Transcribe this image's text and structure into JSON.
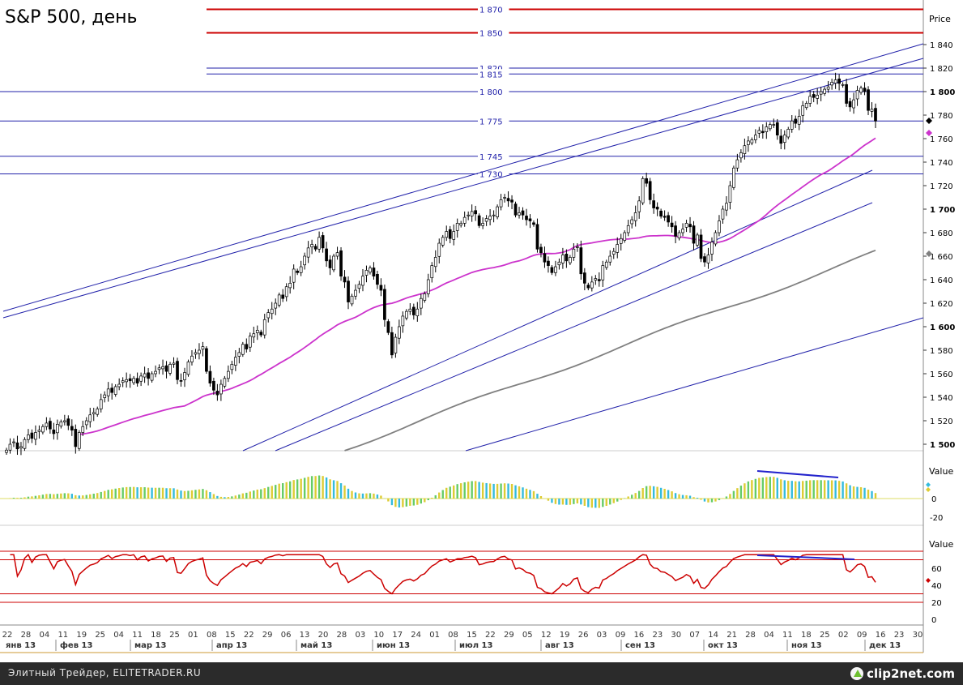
{
  "title": "S&P 500, день",
  "footer": {
    "left": "Элитный Трейдер, ELITETRADER.RU",
    "logo": "clip2net.com",
    "logo_icon": "clip2net-logo-icon"
  },
  "colors": {
    "up": "#ffffff",
    "down": "#000000",
    "ma_fast": "#cc33cc",
    "ma_slow": "#808080",
    "level": "#2222aa",
    "level_red": "#cc0000",
    "rsi": "#cc0000",
    "macd_green": "#66cc66",
    "macd_yellow": "#ddcc33",
    "macd_cyan": "#33bbdd"
  },
  "chart_data": [
    {
      "type": "candlestick",
      "title": "S&P 500, день",
      "ylabel": "Price",
      "ylim": [
        1490,
        1880
      ],
      "y_ticks": [
        "1 500",
        "1 520",
        "1 540",
        "1 560",
        "1 580",
        "1 600",
        "1 620",
        "1 640",
        "1 660",
        "1 680",
        "1 700",
        "1 720",
        "1 740",
        "1 760",
        "1 780",
        "1 800",
        "1 820",
        "1 840"
      ],
      "levels": [
        {
          "value": 1870,
          "label": "1 870",
          "color": "red"
        },
        {
          "value": 1850,
          "label": "1 850",
          "color": "red"
        },
        {
          "value": 1820,
          "label": "1 820",
          "color": "blue"
        },
        {
          "value": 1815,
          "label": "1 815",
          "color": "blue"
        },
        {
          "value": 1800,
          "label": "1 800",
          "color": "blue"
        },
        {
          "value": 1775,
          "label": "1 775",
          "color": "blue"
        },
        {
          "value": 1745,
          "label": "1 745",
          "color": "blue"
        },
        {
          "value": 1730,
          "label": "1 730",
          "color": "blue"
        }
      ],
      "x_ticks": [
        "22",
        "28",
        "04",
        "11",
        "19",
        "25",
        "04",
        "11",
        "18",
        "25",
        "01",
        "08",
        "15",
        "22",
        "29",
        "06",
        "13",
        "20",
        "28",
        "03",
        "10",
        "17",
        "24",
        "01",
        "08",
        "15",
        "22",
        "29",
        "05",
        "12",
        "19",
        "26",
        "03",
        "09",
        "16",
        "23",
        "30",
        "07",
        "14",
        "21",
        "28",
        "04",
        "11",
        "18",
        "25",
        "02",
        "09",
        "16",
        "23",
        "30"
      ],
      "months": [
        "янв 13",
        "фев 13",
        "мар 13",
        "апр 13",
        "май 13",
        "июн 13",
        "июл 13",
        "авг 13",
        "сен 13",
        "окт 13",
        "ноя 13",
        "дек 13"
      ],
      "close": [
        1495,
        1500,
        1502,
        1496,
        1498,
        1504,
        1508,
        1505,
        1510,
        1512,
        1515,
        1518,
        1513,
        1509,
        1517,
        1519,
        1520,
        1516,
        1512,
        1498,
        1510,
        1515,
        1520,
        1525,
        1527,
        1530,
        1538,
        1542,
        1547,
        1544,
        1549,
        1551,
        1554,
        1555,
        1554,
        1556,
        1552,
        1558,
        1560,
        1556,
        1560,
        1562,
        1565,
        1566,
        1562,
        1568,
        1569,
        1555,
        1554,
        1561,
        1570,
        1575,
        1578,
        1580,
        1583,
        1562,
        1552,
        1546,
        1542,
        1551,
        1556,
        1562,
        1568,
        1574,
        1578,
        1585,
        1581,
        1592,
        1594,
        1597,
        1593,
        1606,
        1612,
        1615,
        1620,
        1627,
        1624,
        1634,
        1637,
        1649,
        1646,
        1651,
        1660,
        1667,
        1670,
        1666,
        1676,
        1667,
        1656,
        1650,
        1660,
        1663,
        1643,
        1638,
        1621,
        1626,
        1631,
        1636,
        1643,
        1648,
        1650,
        1643,
        1636,
        1631,
        1606,
        1595,
        1576,
        1591,
        1600,
        1609,
        1613,
        1615,
        1610,
        1615,
        1624,
        1628,
        1640,
        1652,
        1659,
        1671,
        1676,
        1681,
        1675,
        1681,
        1688,
        1688,
        1693,
        1695,
        1698,
        1696,
        1686,
        1688,
        1692,
        1694,
        1695,
        1702,
        1708,
        1710,
        1707,
        1706,
        1695,
        1697,
        1695,
        1691,
        1690,
        1687,
        1666,
        1663,
        1655,
        1652,
        1646,
        1651,
        1655,
        1661,
        1656,
        1659,
        1666,
        1668,
        1645,
        1637,
        1633,
        1638,
        1641,
        1639,
        1652,
        1655,
        1660,
        1664,
        1670,
        1675,
        1680,
        1686,
        1691,
        1697,
        1707,
        1726,
        1722,
        1708,
        1701,
        1700,
        1694,
        1693,
        1689,
        1685,
        1677,
        1680,
        1683,
        1688,
        1685,
        1671,
        1678,
        1658,
        1655,
        1661,
        1672,
        1680,
        1690,
        1700,
        1705,
        1720,
        1735,
        1742,
        1748,
        1754,
        1758,
        1759,
        1763,
        1767,
        1765,
        1770,
        1772,
        1772,
        1763,
        1756,
        1763,
        1768,
        1775,
        1773,
        1779,
        1788,
        1790,
        1796,
        1795,
        1797,
        1800,
        1802,
        1804,
        1808,
        1810,
        1807,
        1806,
        1790,
        1787,
        1793,
        1801,
        1803,
        1800,
        1784,
        1785,
        1775
      ]
    },
    {
      "type": "histogram",
      "ylabel": "Value",
      "y_ticks": [
        "0",
        "-20"
      ],
      "note": "MACD-style oscillator with divergence line"
    },
    {
      "type": "line",
      "ylabel": "Value",
      "y_ticks": [
        "60",
        "40",
        "20",
        "0"
      ],
      "levels": [
        80,
        70,
        30,
        20
      ],
      "note": "RSI-style oscillator with divergence line"
    }
  ]
}
